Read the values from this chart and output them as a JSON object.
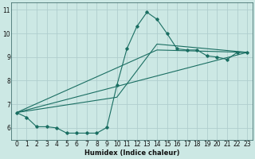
{
  "xlabel": "Humidex (Indice chaleur)",
  "bg_color": "#cce8e4",
  "grid_color": "#b0cece",
  "line_color": "#1a6e62",
  "xlim": [
    -0.5,
    23.5
  ],
  "ylim": [
    5.5,
    11.3
  ],
  "xticks": [
    0,
    1,
    2,
    3,
    4,
    5,
    6,
    7,
    8,
    9,
    10,
    11,
    12,
    13,
    14,
    15,
    16,
    17,
    18,
    19,
    20,
    21,
    22,
    23
  ],
  "yticks": [
    6,
    7,
    8,
    9,
    10,
    11
  ],
  "line1_x": [
    0,
    1,
    2,
    3,
    4,
    5,
    6,
    7,
    8,
    9,
    10,
    11,
    12,
    13,
    14,
    15,
    16,
    17,
    18,
    19,
    20,
    21,
    22,
    23
  ],
  "line1_y": [
    6.65,
    6.45,
    6.05,
    6.05,
    6.0,
    5.78,
    5.78,
    5.78,
    5.78,
    6.02,
    7.8,
    9.35,
    10.3,
    10.9,
    10.6,
    10.0,
    9.35,
    9.3,
    9.3,
    9.05,
    9.0,
    8.9,
    9.2,
    9.2
  ],
  "line2_x": [
    0,
    23
  ],
  "line2_y": [
    6.65,
    9.2
  ],
  "line3_x": [
    0,
    14,
    23
  ],
  "line3_y": [
    6.65,
    9.3,
    9.2
  ],
  "line4_x": [
    0,
    10,
    14,
    23
  ],
  "line4_y": [
    6.65,
    7.3,
    9.55,
    9.2
  ]
}
